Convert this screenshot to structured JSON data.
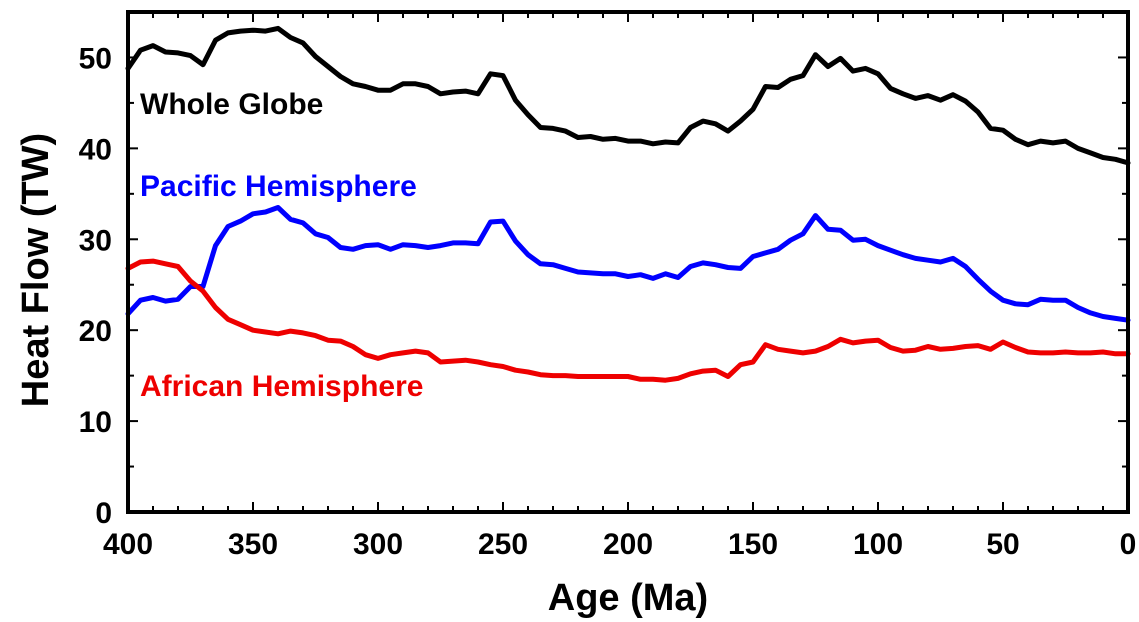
{
  "chart_data": {
    "type": "line",
    "xlabel": "Age (Ma)",
    "ylabel": "Heat Flow (TW)",
    "xlim": [
      400,
      0
    ],
    "ylim": [
      0,
      55
    ],
    "x_reversed": true,
    "xticks": [
      400,
      350,
      300,
      250,
      200,
      150,
      100,
      50,
      0
    ],
    "yticks": [
      0,
      10,
      20,
      30,
      40,
      50
    ],
    "grid": false,
    "series": [
      {
        "name": "Whole Globe",
        "color": "#000000",
        "x": [
          400,
          395,
          390,
          385,
          380,
          375,
          370,
          365,
          360,
          355,
          350,
          345,
          340,
          335,
          330,
          325,
          320,
          315,
          310,
          305,
          300,
          295,
          290,
          285,
          280,
          275,
          270,
          265,
          260,
          255,
          250,
          245,
          240,
          235,
          230,
          225,
          220,
          215,
          210,
          205,
          200,
          195,
          190,
          185,
          180,
          175,
          170,
          165,
          160,
          155,
          150,
          145,
          140,
          135,
          130,
          125,
          120,
          115,
          110,
          105,
          100,
          95,
          90,
          85,
          80,
          75,
          70,
          65,
          60,
          55,
          50,
          45,
          40,
          35,
          30,
          25,
          20,
          15,
          10,
          5,
          0
        ],
        "y": [
          48.8,
          50.8,
          51.3,
          50.6,
          50.5,
          50.2,
          49.2,
          51.9,
          52.7,
          52.9,
          53.0,
          52.9,
          53.2,
          52.2,
          51.6,
          50.1,
          49.0,
          47.9,
          47.1,
          46.8,
          46.4,
          46.4,
          47.1,
          47.1,
          46.8,
          46.0,
          46.2,
          46.3,
          46.0,
          48.2,
          48.0,
          45.3,
          43.7,
          42.3,
          42.2,
          41.9,
          41.2,
          41.3,
          41.0,
          41.1,
          40.8,
          40.8,
          40.5,
          40.7,
          40.6,
          42.3,
          43.0,
          42.7,
          41.9,
          43.0,
          44.3,
          46.8,
          46.7,
          47.6,
          48.0,
          50.3,
          49.0,
          49.9,
          48.5,
          48.8,
          48.2,
          46.6,
          46.0,
          45.5,
          45.8,
          45.3,
          45.9,
          45.2,
          44.0,
          42.2,
          42.0,
          41.0,
          40.4,
          40.8,
          40.6,
          40.8,
          40.0,
          39.5,
          39.0,
          38.8,
          38.4
        ]
      },
      {
        "name": "Pacific Hemisphere",
        "color": "#0000ff",
        "x": [
          400,
          395,
          390,
          385,
          380,
          375,
          370,
          365,
          360,
          355,
          350,
          345,
          340,
          335,
          330,
          325,
          320,
          315,
          310,
          305,
          300,
          295,
          290,
          285,
          280,
          275,
          270,
          265,
          260,
          255,
          250,
          245,
          240,
          235,
          230,
          225,
          220,
          215,
          210,
          205,
          200,
          195,
          190,
          185,
          180,
          175,
          170,
          165,
          160,
          155,
          150,
          145,
          140,
          135,
          130,
          125,
          120,
          115,
          110,
          105,
          100,
          95,
          90,
          85,
          80,
          75,
          70,
          65,
          60,
          55,
          50,
          45,
          40,
          35,
          30,
          25,
          20,
          15,
          10,
          5,
          0
        ],
        "y": [
          21.8,
          23.3,
          23.6,
          23.2,
          23.4,
          24.8,
          24.8,
          29.3,
          31.4,
          32.0,
          32.8,
          33.0,
          33.5,
          32.2,
          31.8,
          30.6,
          30.2,
          29.1,
          28.9,
          29.3,
          29.4,
          28.9,
          29.4,
          29.3,
          29.1,
          29.3,
          29.6,
          29.6,
          29.5,
          31.9,
          32.0,
          29.8,
          28.3,
          27.3,
          27.2,
          26.8,
          26.4,
          26.3,
          26.2,
          26.2,
          25.9,
          26.1,
          25.7,
          26.2,
          25.8,
          27.0,
          27.4,
          27.2,
          26.9,
          26.8,
          28.1,
          28.5,
          28.9,
          29.9,
          30.6,
          32.6,
          31.1,
          31.0,
          29.9,
          30.0,
          29.3,
          28.8,
          28.3,
          27.9,
          27.7,
          27.5,
          27.9,
          27.0,
          25.6,
          24.3,
          23.3,
          22.9,
          22.8,
          23.4,
          23.3,
          23.3,
          22.5,
          21.9,
          21.5,
          21.3,
          21.1
        ]
      },
      {
        "name": "African Hemisphere",
        "color": "#ee0000",
        "x": [
          400,
          395,
          390,
          385,
          380,
          375,
          370,
          365,
          360,
          355,
          350,
          345,
          340,
          335,
          330,
          325,
          320,
          315,
          310,
          305,
          300,
          295,
          290,
          285,
          280,
          275,
          270,
          265,
          260,
          255,
          250,
          245,
          240,
          235,
          230,
          225,
          220,
          215,
          210,
          205,
          200,
          195,
          190,
          185,
          180,
          175,
          170,
          165,
          160,
          155,
          150,
          145,
          140,
          135,
          130,
          125,
          120,
          115,
          110,
          105,
          100,
          95,
          90,
          85,
          80,
          75,
          70,
          65,
          60,
          55,
          50,
          45,
          40,
          35,
          30,
          25,
          20,
          15,
          10,
          5,
          0
        ],
        "y": [
          26.8,
          27.5,
          27.6,
          27.3,
          27.0,
          25.4,
          24.3,
          22.5,
          21.2,
          20.6,
          20.0,
          19.8,
          19.6,
          19.9,
          19.7,
          19.4,
          18.9,
          18.8,
          18.2,
          17.3,
          16.9,
          17.3,
          17.5,
          17.7,
          17.5,
          16.5,
          16.6,
          16.7,
          16.5,
          16.2,
          16.0,
          15.6,
          15.4,
          15.1,
          15.0,
          15.0,
          14.9,
          14.9,
          14.9,
          14.9,
          14.9,
          14.6,
          14.6,
          14.5,
          14.7,
          15.2,
          15.5,
          15.6,
          14.9,
          16.2,
          16.5,
          18.4,
          17.9,
          17.7,
          17.5,
          17.7,
          18.2,
          19.0,
          18.6,
          18.8,
          18.9,
          18.1,
          17.7,
          17.8,
          18.2,
          17.9,
          18.0,
          18.2,
          18.3,
          17.9,
          18.7,
          18.1,
          17.6,
          17.5,
          17.5,
          17.6,
          17.5,
          17.5,
          17.6,
          17.4,
          17.4
        ]
      }
    ],
    "labels": {
      "whole": "Whole Globe",
      "pacific": "Pacific Hemisphere",
      "african": "African Hemisphere"
    },
    "colors": {
      "whole": "#000000",
      "pacific": "#0000ff",
      "african": "#ee0000"
    }
  }
}
